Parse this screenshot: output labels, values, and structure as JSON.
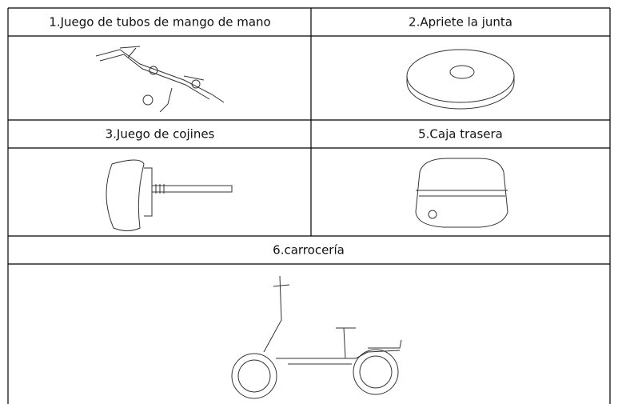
{
  "table": {
    "rows": [
      [
        "1.Juego de tubos de mango de mano",
        "2.Apriete la junta"
      ],
      [
        "3.Juego de cojines",
        "5.Caja trasera"
      ],
      [
        "6.carrocería"
      ]
    ]
  }
}
